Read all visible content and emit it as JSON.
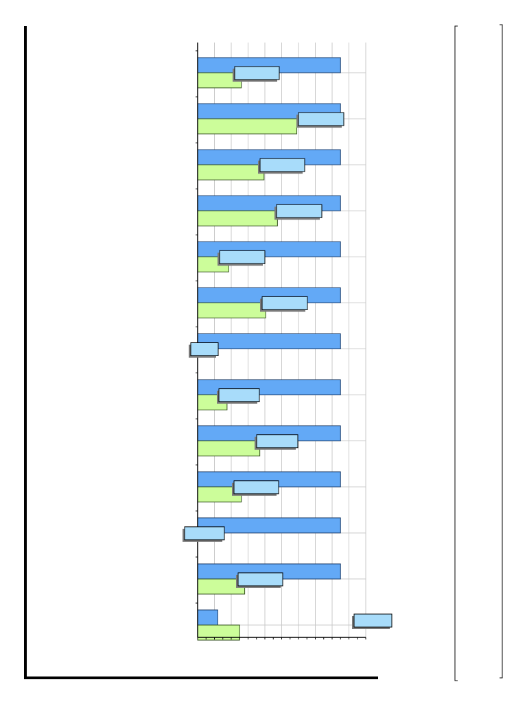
{
  "chart_data": {
    "type": "bar",
    "orientation": "horizontal",
    "title": "",
    "xlabel": "",
    "ylabel": "",
    "categories": [
      "",
      "",
      "",
      "",
      "",
      "",
      "",
      "",
      "",
      "",
      "",
      "",
      ""
    ],
    "xlim": [
      0,
      10
    ],
    "grid": true,
    "legend": "none",
    "series": [
      {
        "values": [
          8.5,
          8.5,
          8.5,
          8.5,
          8.5,
          8.5,
          8.5,
          8.5,
          8.5,
          8.5,
          8.5,
          8.5,
          1.2
        ],
        "color": "#63a9f6"
      },
      {
        "values": [
          2.6,
          5.9,
          3.95,
          4.75,
          1.85,
          4.05,
          0,
          1.75,
          3.7,
          2.6,
          0,
          2.8,
          2.5
        ],
        "color": "#ccfd9a"
      }
    ],
    "callouts": [
      "",
      "",
      "",
      "",
      "",
      "",
      "",
      "",
      "",
      "",
      "",
      "",
      ""
    ],
    "colors": {
      "callout_fill": "#a8dcfa",
      "callout_shadow": "#7a7a7a",
      "grid": "#c8c8c8",
      "frame": "#000000"
    }
  }
}
